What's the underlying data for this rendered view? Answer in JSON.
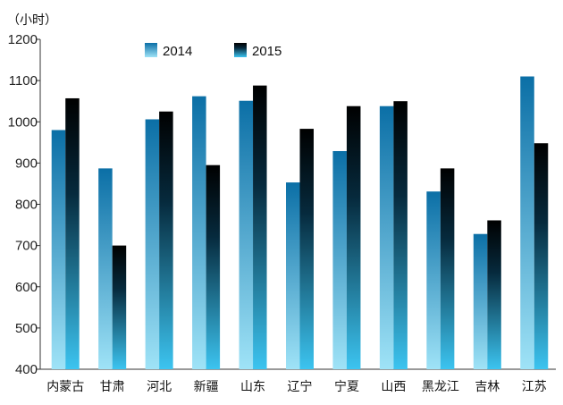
{
  "chart_data": {
    "type": "bar",
    "unit_label": "（小时）",
    "categories": [
      "内蒙古",
      "甘肃",
      "河北",
      "新疆",
      "山东",
      "辽宁",
      "宁夏",
      "山西",
      "黑龙江",
      "吉林",
      "江苏"
    ],
    "series": [
      {
        "name": "2014",
        "values": [
          980,
          887,
          1006,
          1062,
          1051,
          853,
          929,
          1038,
          831,
          728,
          1110
        ]
      },
      {
        "name": "2015",
        "values": [
          1057,
          700,
          1025,
          895,
          1088,
          983,
          1038,
          1050,
          887,
          761,
          948
        ]
      }
    ],
    "ylim": [
      400,
      1200
    ],
    "yticks": [
      400,
      500,
      600,
      700,
      800,
      900,
      1000,
      1100,
      1200
    ],
    "grid": false,
    "legend_position": "top-left",
    "colors": {
      "2014_top": "#0b6fa6",
      "2014_bottom": "#9fe3f7",
      "2015_top": "#000000",
      "2015_bottom": "#3cc4f0",
      "axis": "#333333"
    }
  }
}
